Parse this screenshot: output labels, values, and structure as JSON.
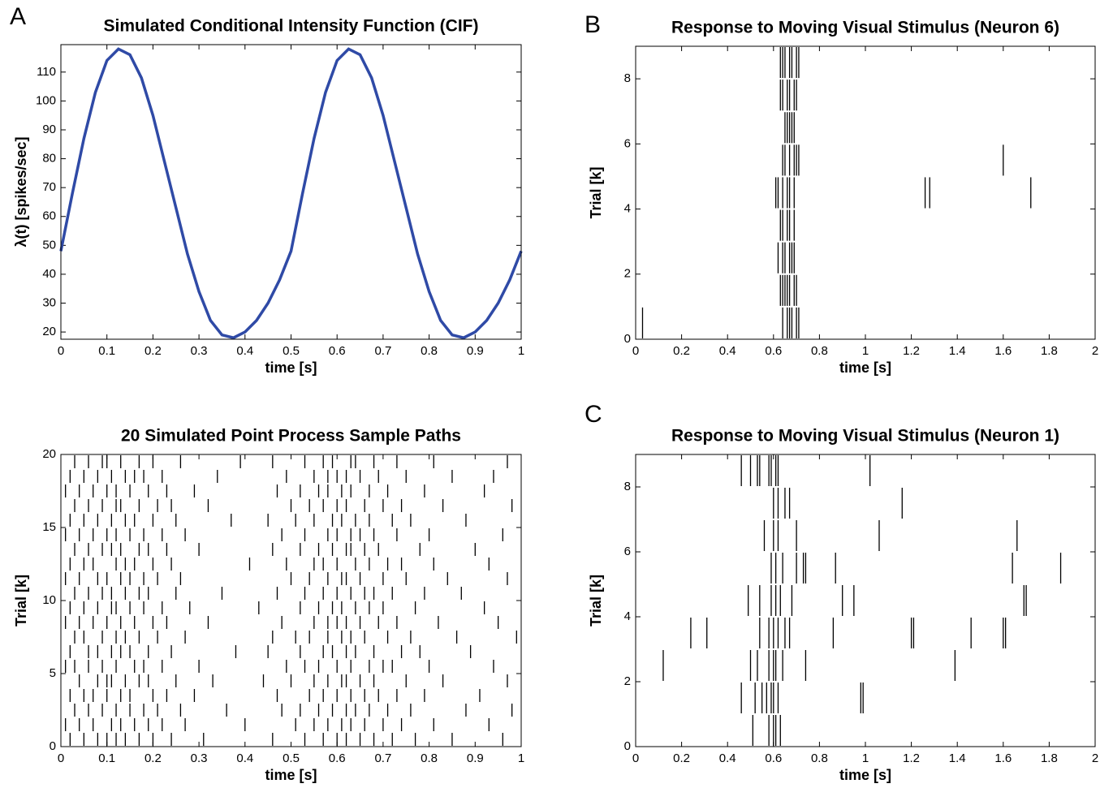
{
  "chart_data": [
    {
      "type": "line",
      "letter": "A",
      "title": "Simulated Conditional Intensity Function (CIF)",
      "xlabel": "time [s]",
      "ylabel": "λ(t) [spikes/sec]",
      "color": "#2f4aa6",
      "x": [
        0,
        0.025,
        0.05,
        0.075,
        0.1,
        0.125,
        0.15,
        0.175,
        0.2,
        0.225,
        0.25,
        0.275,
        0.3,
        0.325,
        0.35,
        0.375,
        0.4,
        0.425,
        0.45,
        0.475,
        0.5,
        0.525,
        0.55,
        0.575,
        0.6,
        0.625,
        0.65,
        0.675,
        0.7,
        0.725,
        0.75,
        0.775,
        0.8,
        0.825,
        0.85,
        0.875,
        0.9,
        0.925,
        0.95,
        0.975,
        1
      ],
      "values": [
        48,
        68,
        87,
        103,
        114,
        118,
        116,
        108,
        95,
        79,
        63,
        47,
        34,
        24,
        19,
        18,
        20,
        24,
        30,
        38,
        48,
        68,
        87,
        103,
        114,
        118,
        116,
        108,
        95,
        79,
        63,
        47,
        34,
        24,
        19,
        18,
        20,
        24,
        30,
        38,
        48
      ],
      "xlim": [
        0,
        1
      ],
      "xticks": [
        0,
        0.1,
        0.2,
        0.3,
        0.4,
        0.5,
        0.6,
        0.7,
        0.8,
        0.9,
        1
      ],
      "ylim": [
        17.5,
        119.5
      ],
      "yticks": [
        20,
        30,
        40,
        50,
        60,
        70,
        80,
        90,
        100,
        110
      ]
    },
    {
      "type": "raster",
      "letter": "B",
      "title": "Response to Moving Visual Stimulus (Neuron 6)",
      "xlabel": "time [s]",
      "ylabel": "Trial [k]",
      "xlim": [
        0,
        2
      ],
      "xticks": [
        0,
        0.2,
        0.4,
        0.6,
        0.8,
        1,
        1.2,
        1.4,
        1.6,
        1.8,
        2
      ],
      "ylim": [
        0,
        9
      ],
      "yticks": [
        0,
        2,
        4,
        6,
        8
      ],
      "rows": [
        {
          "y": 1,
          "spikes": [
            0.03,
            0.64,
            0.66,
            0.67,
            0.68,
            0.7,
            0.71
          ]
        },
        {
          "y": 2,
          "spikes": [
            0.63,
            0.64,
            0.65,
            0.66,
            0.67,
            0.69,
            0.7
          ]
        },
        {
          "y": 3,
          "spikes": [
            0.62,
            0.64,
            0.65,
            0.67,
            0.68,
            0.69
          ]
        },
        {
          "y": 4,
          "spikes": [
            0.63,
            0.64,
            0.66,
            0.67,
            0.69
          ]
        },
        {
          "y": 5,
          "spikes": [
            0.61,
            0.62,
            0.64,
            0.66,
            0.67,
            0.69,
            1.26,
            1.28,
            1.72
          ]
        },
        {
          "y": 6,
          "spikes": [
            0.64,
            0.65,
            0.67,
            0.69,
            0.7,
            0.71,
            1.6
          ]
        },
        {
          "y": 7,
          "spikes": [
            0.65,
            0.66,
            0.67,
            0.68,
            0.69
          ]
        },
        {
          "y": 8,
          "spikes": [
            0.63,
            0.64,
            0.66,
            0.67,
            0.69,
            0.7
          ]
        },
        {
          "y": 9,
          "spikes": [
            0.63,
            0.64,
            0.65,
            0.67,
            0.68,
            0.7,
            0.71
          ]
        }
      ]
    },
    {
      "type": "raster",
      "title": "20 Simulated Point Process Sample Paths",
      "xlabel": "time [s]",
      "ylabel": "Trial [k]",
      "xlim": [
        0,
        1
      ],
      "xticks": [
        0,
        0.1,
        0.2,
        0.3,
        0.4,
        0.5,
        0.6,
        0.7,
        0.8,
        0.9,
        1
      ],
      "ylim": [
        0,
        20
      ],
      "yticks": [
        0,
        5,
        10,
        15,
        20
      ],
      "rows": [
        {
          "y": 1,
          "spikes": [
            0.02,
            0.05,
            0.08,
            0.1,
            0.12,
            0.14,
            0.17,
            0.2,
            0.24,
            0.31,
            0.46,
            0.53,
            0.57,
            0.6,
            0.62,
            0.65,
            0.68,
            0.72,
            0.77,
            0.85,
            0.96
          ]
        },
        {
          "y": 2,
          "spikes": [
            0.01,
            0.04,
            0.07,
            0.11,
            0.13,
            0.16,
            0.19,
            0.22,
            0.27,
            0.4,
            0.51,
            0.55,
            0.58,
            0.61,
            0.63,
            0.66,
            0.7,
            0.74,
            0.81,
            0.93
          ]
        },
        {
          "y": 3,
          "spikes": [
            0.03,
            0.06,
            0.09,
            0.12,
            0.15,
            0.18,
            0.21,
            0.26,
            0.36,
            0.48,
            0.52,
            0.56,
            0.59,
            0.62,
            0.64,
            0.67,
            0.71,
            0.76,
            0.88,
            0.98
          ]
        },
        {
          "y": 4,
          "spikes": [
            0.02,
            0.05,
            0.07,
            0.1,
            0.13,
            0.15,
            0.2,
            0.23,
            0.29,
            0.47,
            0.54,
            0.57,
            0.6,
            0.63,
            0.66,
            0.69,
            0.73,
            0.79,
            0.91
          ]
        },
        {
          "y": 5,
          "spikes": [
            0.04,
            0.08,
            0.1,
            0.11,
            0.14,
            0.17,
            0.19,
            0.25,
            0.33,
            0.44,
            0.5,
            0.55,
            0.58,
            0.61,
            0.62,
            0.65,
            0.68,
            0.75,
            0.83,
            0.97
          ]
        },
        {
          "y": 6,
          "spikes": [
            0.01,
            0.03,
            0.06,
            0.09,
            0.12,
            0.16,
            0.18,
            0.22,
            0.3,
            0.49,
            0.53,
            0.56,
            0.6,
            0.63,
            0.67,
            0.7,
            0.72,
            0.8,
            0.94
          ]
        },
        {
          "y": 7,
          "spikes": [
            0.02,
            0.06,
            0.08,
            0.11,
            0.13,
            0.15,
            0.19,
            0.24,
            0.38,
            0.45,
            0.52,
            0.57,
            0.59,
            0.62,
            0.64,
            0.68,
            0.74,
            0.78,
            0.89
          ]
        },
        {
          "y": 8,
          "spikes": [
            0.03,
            0.05,
            0.09,
            0.12,
            0.14,
            0.17,
            0.21,
            0.27,
            0.46,
            0.51,
            0.54,
            0.58,
            0.61,
            0.63,
            0.66,
            0.71,
            0.76,
            0.86,
            0.99
          ]
        },
        {
          "y": 9,
          "spikes": [
            0.01,
            0.04,
            0.07,
            0.1,
            0.13,
            0.16,
            0.2,
            0.23,
            0.32,
            0.48,
            0.55,
            0.58,
            0.6,
            0.62,
            0.65,
            0.69,
            0.73,
            0.82,
            0.95
          ]
        },
        {
          "y": 10,
          "spikes": [
            0.02,
            0.05,
            0.08,
            0.11,
            0.12,
            0.15,
            0.18,
            0.22,
            0.28,
            0.43,
            0.52,
            0.56,
            0.59,
            0.61,
            0.64,
            0.67,
            0.7,
            0.77,
            0.92
          ]
        },
        {
          "y": 11,
          "spikes": [
            0.03,
            0.06,
            0.09,
            0.11,
            0.14,
            0.17,
            0.19,
            0.25,
            0.35,
            0.47,
            0.53,
            0.57,
            0.6,
            0.63,
            0.66,
            0.68,
            0.72,
            0.79,
            0.87
          ]
        },
        {
          "y": 12,
          "spikes": [
            0.01,
            0.04,
            0.08,
            0.1,
            0.13,
            0.15,
            0.18,
            0.21,
            0.26,
            0.5,
            0.54,
            0.58,
            0.61,
            0.62,
            0.65,
            0.7,
            0.75,
            0.84,
            0.97
          ]
        },
        {
          "y": 13,
          "spikes": [
            0.02,
            0.05,
            0.07,
            0.12,
            0.14,
            0.16,
            0.2,
            0.24,
            0.41,
            0.49,
            0.55,
            0.57,
            0.6,
            0.64,
            0.67,
            0.71,
            0.74,
            0.81,
            0.93
          ]
        },
        {
          "y": 14,
          "spikes": [
            0.03,
            0.06,
            0.09,
            0.11,
            0.13,
            0.17,
            0.19,
            0.23,
            0.3,
            0.46,
            0.52,
            0.56,
            0.59,
            0.62,
            0.63,
            0.66,
            0.69,
            0.78,
            0.9
          ]
        },
        {
          "y": 15,
          "spikes": [
            0.01,
            0.04,
            0.07,
            0.1,
            0.12,
            0.15,
            0.18,
            0.22,
            0.27,
            0.48,
            0.53,
            0.58,
            0.6,
            0.63,
            0.65,
            0.68,
            0.73,
            0.8,
            0.96
          ]
        },
        {
          "y": 16,
          "spikes": [
            0.02,
            0.05,
            0.08,
            0.11,
            0.14,
            0.16,
            0.2,
            0.25,
            0.37,
            0.45,
            0.51,
            0.55,
            0.59,
            0.61,
            0.64,
            0.67,
            0.72,
            0.76,
            0.88
          ]
        },
        {
          "y": 17,
          "spikes": [
            0.03,
            0.06,
            0.09,
            0.12,
            0.13,
            0.17,
            0.21,
            0.24,
            0.32,
            0.5,
            0.54,
            0.57,
            0.6,
            0.62,
            0.66,
            0.7,
            0.74,
            0.83,
            0.98
          ]
        },
        {
          "y": 18,
          "spikes": [
            0.01,
            0.04,
            0.07,
            0.1,
            0.12,
            0.15,
            0.19,
            0.23,
            0.29,
            0.47,
            0.52,
            0.56,
            0.58,
            0.61,
            0.63,
            0.67,
            0.71,
            0.79,
            0.92
          ]
        },
        {
          "y": 19,
          "spikes": [
            0.02,
            0.05,
            0.08,
            0.11,
            0.14,
            0.16,
            0.18,
            0.22,
            0.34,
            0.49,
            0.55,
            0.58,
            0.6,
            0.62,
            0.65,
            0.69,
            0.75,
            0.85,
            0.94
          ]
        },
        {
          "y": 20,
          "spikes": [
            0.03,
            0.06,
            0.09,
            0.1,
            0.13,
            0.17,
            0.2,
            0.26,
            0.39,
            0.46,
            0.53,
            0.57,
            0.59,
            0.63,
            0.64,
            0.68,
            0.73,
            0.81,
            0.97
          ]
        }
      ]
    },
    {
      "type": "raster",
      "letter": "C",
      "title": "Response to Moving Visual Stimulus (Neuron 1)",
      "xlabel": "time [s]",
      "ylabel": "Trial [k]",
      "xlim": [
        0,
        2
      ],
      "xticks": [
        0,
        0.2,
        0.4,
        0.6,
        0.8,
        1,
        1.2,
        1.4,
        1.6,
        1.8,
        2
      ],
      "ylim": [
        0,
        9
      ],
      "yticks": [
        0,
        2,
        4,
        6,
        8
      ],
      "rows": [
        {
          "y": 1,
          "spikes": [
            0.51,
            0.58,
            0.6,
            0.61,
            0.63
          ]
        },
        {
          "y": 2,
          "spikes": [
            0.46,
            0.52,
            0.55,
            0.57,
            0.59,
            0.6,
            0.62,
            0.98,
            0.99
          ]
        },
        {
          "y": 3,
          "spikes": [
            0.12,
            0.5,
            0.53,
            0.58,
            0.6,
            0.61,
            0.64,
            0.74,
            1.39
          ]
        },
        {
          "y": 4,
          "spikes": [
            0.24,
            0.31,
            0.54,
            0.58,
            0.6,
            0.62,
            0.65,
            0.67,
            0.86,
            1.2,
            1.21,
            1.46,
            1.6,
            1.61
          ]
        },
        {
          "y": 5,
          "spikes": [
            0.49,
            0.54,
            0.59,
            0.61,
            0.63,
            0.68,
            0.9,
            0.95,
            1.69,
            1.7
          ]
        },
        {
          "y": 6,
          "spikes": [
            0.59,
            0.61,
            0.64,
            0.7,
            0.73,
            0.74,
            0.87,
            1.64,
            1.85
          ]
        },
        {
          "y": 7,
          "spikes": [
            0.56,
            0.6,
            0.62,
            0.7,
            1.06,
            1.66
          ]
        },
        {
          "y": 8,
          "spikes": [
            0.6,
            0.62,
            0.65,
            0.67,
            1.16
          ]
        },
        {
          "y": 9,
          "spikes": [
            0.46,
            0.5,
            0.53,
            0.54,
            0.58,
            0.59,
            0.61,
            0.62,
            1.02
          ]
        }
      ]
    }
  ]
}
